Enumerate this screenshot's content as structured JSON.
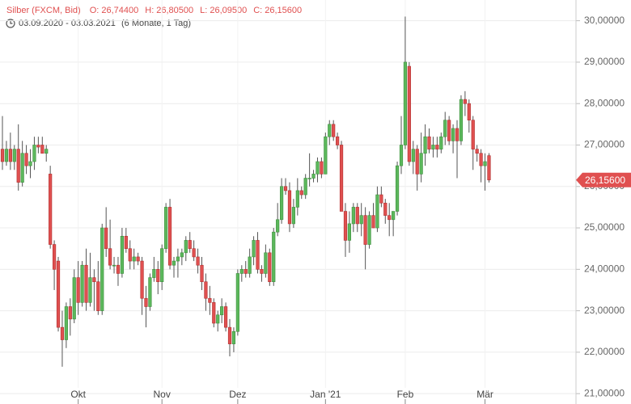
{
  "chart_data": {
    "type": "candlestick",
    "title": "Silber (FXCM, Bid)",
    "ohlc_labels": [
      {
        "name": "O:",
        "text": "26,74400"
      },
      {
        "name": "H:",
        "text": "26,80500"
      },
      {
        "name": "L:",
        "text": "26,09500"
      },
      {
        "name": "C:",
        "text": "26,15600"
      }
    ],
    "date_range": "03.09.2020 - 03.03.2021",
    "period": "(6 Monate, 1 Tag)",
    "up_color": "#5cb85c",
    "down_color": "#e05050",
    "grid": true,
    "ylim": [
      20.75,
      30.5
    ],
    "yticks": [
      {
        "value": 21,
        "label": "21,00000"
      },
      {
        "value": 22,
        "label": "22,00000"
      },
      {
        "value": 23,
        "label": "23,00000"
      },
      {
        "value": 24,
        "label": "24,00000"
      },
      {
        "value": 25,
        "label": "25,00000"
      },
      {
        "value": 26,
        "label": "26,00000"
      },
      {
        "value": 27,
        "label": "27,00000"
      },
      {
        "value": 28,
        "label": "28,00000"
      },
      {
        "value": 29,
        "label": "29,00000"
      },
      {
        "value": 30,
        "label": "30,00000"
      }
    ],
    "last_price": {
      "value": 26.156,
      "label": "26,15600"
    },
    "categories": [
      null,
      null,
      null,
      null,
      null,
      null,
      null,
      null,
      null,
      null,
      null,
      null,
      null,
      null,
      null,
      null,
      null,
      null,
      null,
      "Okt",
      null,
      null,
      null,
      null,
      null,
      null,
      null,
      null,
      null,
      null,
      null,
      null,
      null,
      null,
      null,
      null,
      null,
      null,
      null,
      null,
      "Nov",
      null,
      null,
      null,
      null,
      null,
      null,
      null,
      null,
      null,
      null,
      null,
      null,
      null,
      null,
      null,
      null,
      null,
      null,
      "Dez",
      null,
      null,
      null,
      null,
      null,
      null,
      null,
      null,
      null,
      null,
      null,
      null,
      null,
      null,
      null,
      null,
      null,
      null,
      null,
      null,
      null,
      "Jan '21",
      null,
      null,
      null,
      null,
      null,
      null,
      null,
      null,
      null,
      null,
      null,
      null,
      null,
      null,
      null,
      null,
      null,
      null,
      null,
      "Feb",
      null,
      null,
      null,
      null,
      null,
      null,
      null,
      null,
      null,
      null,
      null,
      null,
      null,
      null,
      null,
      null,
      null,
      null,
      null,
      "Mär",
      null
    ],
    "open": [
      26.9,
      26.6,
      26.9,
      26.6,
      26.9,
      26.1,
      26.8,
      26.5,
      26.6,
      27.0,
      27.0,
      26.8,
      26.3,
      24.6,
      24.2,
      22.6,
      22.3,
      23.1,
      22.8,
      23.8,
      23.2,
      24.1,
      23.2,
      23.8,
      23.7,
      23.0,
      25.0,
      24.5,
      24.1,
      24.1,
      23.9,
      24.8,
      24.5,
      24.2,
      24.3,
      24.2,
      23.3,
      23.1,
      23.8,
      24.0,
      23.7,
      24.5,
      25.5,
      24.1,
      24.2,
      24.3,
      24.4,
      24.7,
      24.5,
      24.3,
      24.1,
      23.7,
      23.3,
      23.2,
      22.7,
      22.9,
      23.1,
      22.6,
      22.2,
      22.5,
      23.9,
      24.0,
      23.9,
      24.3,
      24.7,
      24.0,
      23.9,
      24.4,
      23.7,
      24.9,
      25.2,
      26.0,
      25.9,
      25.1,
      25.5,
      25.9,
      25.8,
      26.2,
      26.2,
      26.3,
      26.6,
      26.3,
      27.2,
      27.5,
      27.2,
      27.0,
      25.4,
      24.7,
      25.1,
      25.5,
      25.1,
      25.3,
      24.6,
      25.3,
      25.0,
      25.8,
      25.6,
      25.3,
      25.2,
      25.4,
      26.5,
      27.0,
      28.9,
      26.6,
      26.9,
      26.3,
      26.8,
      27.2,
      26.9,
      27.0,
      26.9,
      27.2,
      27.6,
      27.1,
      27.4,
      27.1,
      28.1,
      28.0,
      27.6,
      26.9,
      26.8,
      26.5,
      26.744
    ],
    "high": [
      27.7,
      27.1,
      27.3,
      27.0,
      27.5,
      27.1,
      27.0,
      26.9,
      27.2,
      27.2,
      27.2,
      27.0,
      26.5,
      24.7,
      24.3,
      23.0,
      23.2,
      23.3,
      24.0,
      24.2,
      24.2,
      24.5,
      24.4,
      24.0,
      24.2,
      25.1,
      25.5,
      25.2,
      24.3,
      24.3,
      25.0,
      25.0,
      24.7,
      24.5,
      24.4,
      24.3,
      23.6,
      23.9,
      24.3,
      24.2,
      24.6,
      25.6,
      25.7,
      24.3,
      24.5,
      24.5,
      24.8,
      24.9,
      24.7,
      24.5,
      24.3,
      23.9,
      23.6,
      23.3,
      23.0,
      23.3,
      23.2,
      22.8,
      22.6,
      24.0,
      24.1,
      24.2,
      24.5,
      24.8,
      24.9,
      24.1,
      24.6,
      24.5,
      25.0,
      25.6,
      26.2,
      26.2,
      26.1,
      25.7,
      26.2,
      26.0,
      26.3,
      26.8,
      26.4,
      26.7,
      26.7,
      27.3,
      27.6,
      27.6,
      27.3,
      27.1,
      25.6,
      25.4,
      25.6,
      25.6,
      25.6,
      25.5,
      25.4,
      25.6,
      26.0,
      26.0,
      25.7,
      25.6,
      25.4,
      26.6,
      27.7,
      30.1,
      29.0,
      27.1,
      27.0,
      27.3,
      27.5,
      27.4,
      27.2,
      27.2,
      27.3,
      27.8,
      27.7,
      27.5,
      27.6,
      28.2,
      28.3,
      28.1,
      27.7,
      27.0,
      26.9,
      26.8,
      26.805
    ],
    "low": [
      26.4,
      26.5,
      26.4,
      26.4,
      25.9,
      26.0,
      26.3,
      26.2,
      26.4,
      26.8,
      26.8,
      26.6,
      24.5,
      23.5,
      22.5,
      21.65,
      22.1,
      22.4,
      22.7,
      22.9,
      23.1,
      23.0,
      23.1,
      23.0,
      22.9,
      22.9,
      24.3,
      24.0,
      23.9,
      23.6,
      23.8,
      24.4,
      24.0,
      24.0,
      24.1,
      22.9,
      22.6,
      23.0,
      23.7,
      23.4,
      23.5,
      24.4,
      24.0,
      23.8,
      23.8,
      24.1,
      24.2,
      24.4,
      24.2,
      23.9,
      23.5,
      23.0,
      22.9,
      22.6,
      22.5,
      22.7,
      22.5,
      21.9,
      22.0,
      22.4,
      23.7,
      23.8,
      23.8,
      24.1,
      23.9,
      23.7,
      23.8,
      23.6,
      23.6,
      24.8,
      25.1,
      25.8,
      24.9,
      25.0,
      25.3,
      25.7,
      25.7,
      26.0,
      26.1,
      26.1,
      26.2,
      26.3,
      27.0,
      27.1,
      26.9,
      25.4,
      24.3,
      24.4,
      24.9,
      24.9,
      24.8,
      24.0,
      24.5,
      25.0,
      24.9,
      25.5,
      25.1,
      24.8,
      24.8,
      25.3,
      26.3,
      26.9,
      26.5,
      26.3,
      25.9,
      26.1,
      26.5,
      26.8,
      26.7,
      26.7,
      26.8,
      27.0,
      27.0,
      26.8,
      26.2,
      27.0,
      27.7,
      27.3,
      26.4,
      26.6,
      26.1,
      25.9,
      26.095
    ],
    "close": [
      26.6,
      26.9,
      26.6,
      26.9,
      26.1,
      26.8,
      26.5,
      26.6,
      27.0,
      26.95,
      26.8,
      26.9,
      24.6,
      24.0,
      22.6,
      22.3,
      23.1,
      22.8,
      23.8,
      23.2,
      24.1,
      23.2,
      23.8,
      23.7,
      23.0,
      25.0,
      24.5,
      24.1,
      24.1,
      23.9,
      24.8,
      24.5,
      24.2,
      24.3,
      24.2,
      23.3,
      23.1,
      23.8,
      24.0,
      23.7,
      24.5,
      25.5,
      24.1,
      24.2,
      24.3,
      24.4,
      24.7,
      24.5,
      24.3,
      24.1,
      23.7,
      23.3,
      23.2,
      22.7,
      22.9,
      23.1,
      22.6,
      22.2,
      22.5,
      23.9,
      24.0,
      23.9,
      24.3,
      24.7,
      24.0,
      23.9,
      24.4,
      23.7,
      24.9,
      25.2,
      26.0,
      25.9,
      25.1,
      25.5,
      25.9,
      25.8,
      26.2,
      26.2,
      26.3,
      26.6,
      26.3,
      27.2,
      27.5,
      27.2,
      27.0,
      25.4,
      24.7,
      25.1,
      25.5,
      25.1,
      25.3,
      24.6,
      25.3,
      25.0,
      25.8,
      25.6,
      25.3,
      25.2,
      25.4,
      26.5,
      27.0,
      29.0,
      26.6,
      26.9,
      26.3,
      26.8,
      27.2,
      26.9,
      27.0,
      26.9,
      27.2,
      27.6,
      27.1,
      27.4,
      27.1,
      28.1,
      28.0,
      27.6,
      26.9,
      26.8,
      26.5,
      26.6,
      26.156
    ]
  }
}
